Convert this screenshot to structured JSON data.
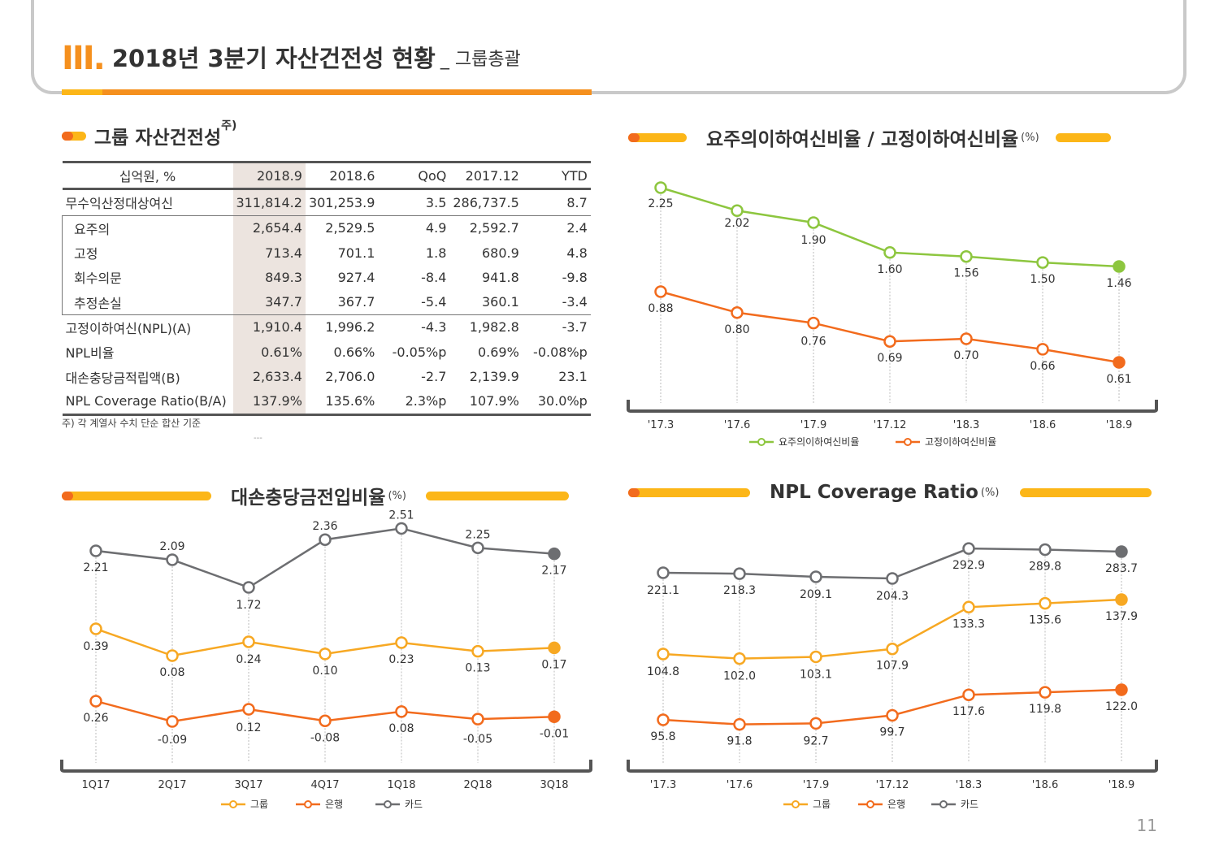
{
  "header": {
    "roman": "III",
    "title": "2018년 3분기 자산건전성 현황",
    "subtitle": "_ 그룹총괄"
  },
  "asset_table": {
    "section_title": "그룹 자산건전성",
    "sup": "주)",
    "columns": [
      "십억원, %",
      "2018.9",
      "2018.6",
      "QoQ",
      "2017.12",
      "YTD"
    ],
    "rows": [
      {
        "label": "무수익산정대상여신",
        "values": [
          "311,814.2",
          "301,253.9",
          "3.5",
          "286,737.5",
          "8.7"
        ]
      },
      {
        "label": "요주의",
        "values": [
          "2,654.4",
          "2,529.5",
          "4.9",
          "2,592.7",
          "2.4"
        ]
      },
      {
        "label": "고정",
        "values": [
          "713.4",
          "701.1",
          "1.8",
          "680.9",
          "4.8"
        ]
      },
      {
        "label": "회수의문",
        "values": [
          "849.3",
          "927.4",
          "-8.4",
          "941.8",
          "-9.8"
        ]
      },
      {
        "label": "추정손실",
        "values": [
          "347.7",
          "367.7",
          "-5.4",
          "360.1",
          "-3.4"
        ]
      },
      {
        "label": "고정이하여신(NPL)(A)",
        "values": [
          "1,910.4",
          "1,996.2",
          "-4.3",
          "1,982.8",
          "-3.7"
        ]
      },
      {
        "label": "NPL비율",
        "values": [
          "0.61%",
          "0.66%",
          "-0.05%p",
          "0.69%",
          "-0.08%p"
        ]
      },
      {
        "label": "대손충당금적립액(B)",
        "values": [
          "2,633.4",
          "2,706.0",
          "-2.7",
          "2,139.9",
          "23.1"
        ]
      },
      {
        "label": "NPL Coverage Ratio(B/A)",
        "values": [
          "137.9%",
          "135.6%",
          "2.3%p",
          "107.9%",
          "30.0%p"
        ]
      }
    ],
    "note": "주) 각 계열사 수치 단순 합산 기준",
    "faint": "---"
  },
  "chart_data": [
    {
      "type": "line",
      "title": "요주의이하여신비율 / 고정이하여신비율",
      "unit": "(%)",
      "categories": [
        "'17.3",
        "'17.6",
        "'17.9",
        "'17.12",
        "'18.3",
        "'18.6",
        "'18.9"
      ],
      "series": [
        {
          "name": "요주의이하여신비율",
          "color": "#8dc63f",
          "values": [
            2.25,
            2.02,
            1.9,
            1.6,
            1.56,
            1.5,
            1.46
          ],
          "labels": [
            "2.25",
            "2.02",
            "1.90",
            "1.60",
            "1.56",
            "1.50",
            "1.46"
          ]
        },
        {
          "name": "고정이하여신비율",
          "color": "#f26b1d",
          "values": [
            0.88,
            0.8,
            0.76,
            0.69,
            0.7,
            0.66,
            0.61
          ],
          "labels": [
            "0.88",
            "0.80",
            "0.76",
            "0.69",
            "0.70",
            "0.66",
            "0.61"
          ]
        }
      ]
    },
    {
      "type": "line",
      "title": "대손충당금전입비율",
      "unit": "(%)",
      "categories": [
        "1Q17",
        "2Q17",
        "3Q17",
        "4Q17",
        "1Q18",
        "2Q18",
        "3Q18"
      ],
      "series": [
        {
          "name": "그룹",
          "color": "#f7a823",
          "values": [
            0.39,
            0.08,
            0.24,
            0.1,
            0.23,
            0.13,
            0.17
          ],
          "labels": [
            "0.39",
            "0.08",
            "0.24",
            "0.10",
            "0.23",
            "0.13",
            "0.17"
          ]
        },
        {
          "name": "은행",
          "color": "#f26b1d",
          "values": [
            0.26,
            -0.09,
            0.12,
            -0.08,
            0.08,
            -0.05,
            -0.01
          ],
          "labels": [
            "0.26",
            "-0.09",
            "0.12",
            "-0.08",
            "0.08",
            "-0.05",
            "-0.01"
          ]
        },
        {
          "name": "카드",
          "color": "#6d6e71",
          "values": [
            2.21,
            2.09,
            1.72,
            2.36,
            2.51,
            2.25,
            2.17
          ],
          "labels": [
            "2.21",
            "2.09",
            "1.72",
            "2.36",
            "2.51",
            "2.25",
            "2.17"
          ]
        }
      ]
    },
    {
      "type": "line",
      "title": "NPL Coverage Ratio",
      "unit": "(%)",
      "categories": [
        "'17.3",
        "'17.6",
        "'17.9",
        "'17.12",
        "'18.3",
        "'18.6",
        "'18.9"
      ],
      "series": [
        {
          "name": "그룹",
          "color": "#f7a823",
          "values": [
            104.8,
            102.0,
            103.1,
            107.9,
            133.3,
            135.6,
            137.9
          ],
          "labels": [
            "104.8",
            "102.0",
            "103.1",
            "107.9",
            "133.3",
            "135.6",
            "137.9"
          ]
        },
        {
          "name": "은행",
          "color": "#f26b1d",
          "values": [
            95.8,
            91.8,
            92.7,
            99.7,
            117.6,
            119.8,
            122.0
          ],
          "labels": [
            "95.8",
            "91.8",
            "92.7",
            "99.7",
            "117.6",
            "119.8",
            "122.0"
          ]
        },
        {
          "name": "카드",
          "color": "#6d6e71",
          "values": [
            221.1,
            218.3,
            209.1,
            204.3,
            292.9,
            289.8,
            283.7
          ],
          "labels": [
            "221.1",
            "218.3",
            "209.1",
            "204.3",
            "292.9",
            "289.8",
            "283.7"
          ]
        }
      ]
    }
  ],
  "page_number": "11"
}
